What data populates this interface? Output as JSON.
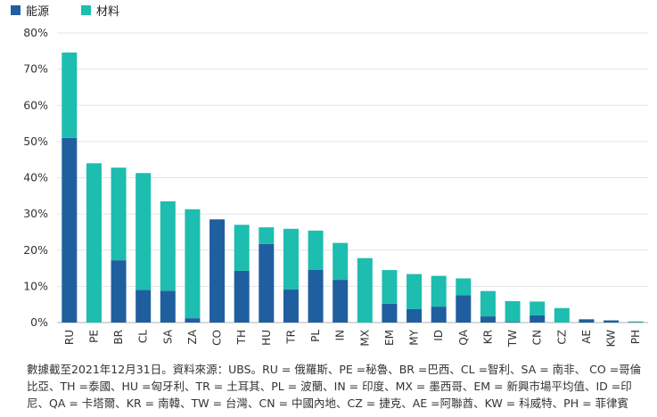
{
  "legend": [
    {
      "name": "能源",
      "color": "#1f5fa0"
    },
    {
      "name": "材料",
      "color": "#1dbdb0"
    }
  ],
  "chart_data": {
    "type": "bar",
    "stacked": true,
    "categories": [
      "RU",
      "PE",
      "BR",
      "CL",
      "SA",
      "ZA",
      "CO",
      "TH",
      "HU",
      "TR",
      "PL",
      "IN",
      "MX",
      "EM",
      "MY",
      "ID",
      "QA",
      "KR",
      "TW",
      "CN",
      "CZ",
      "AE",
      "KW",
      "PH"
    ],
    "series": [
      {
        "name": "能源",
        "color": "#1f5fa0",
        "values": [
          51.0,
          0,
          17.2,
          9.0,
          8.8,
          1.2,
          28.5,
          14.3,
          21.7,
          9.1,
          14.6,
          11.8,
          0,
          5.2,
          3.7,
          4.4,
          7.5,
          1.7,
          0.2,
          2.0,
          0,
          0.9,
          0.6,
          0.1
        ]
      },
      {
        "name": "材料",
        "color": "#1dbdb0",
        "values": [
          23.6,
          44.0,
          25.6,
          32.3,
          24.7,
          30.1,
          0,
          12.7,
          4.6,
          16.8,
          10.8,
          10.2,
          17.8,
          9.3,
          9.7,
          8.5,
          4.7,
          7.0,
          5.7,
          3.8,
          4.0,
          0,
          0,
          0.2
        ]
      }
    ],
    "y_ticks": [
      "0%",
      "10%",
      "20%",
      "30%",
      "40%",
      "50%",
      "60%",
      "70%",
      "80%"
    ],
    "ylim": [
      0,
      80
    ],
    "grid": true,
    "legend_position": "top-left"
  },
  "footnote": {
    "lines": [
      "數據截至2021年12月31日。資料來源：UBS。RU = 俄羅斯、PE =秘魯、BR =巴西、CL =智利、SA = 南非、 CO =哥倫",
      "比亞、TH =泰國、HU =匈牙利、TR = 土耳其、PL = 波蘭、IN = 印度、MX = 墨西哥、EM = 新興市場平均值、ID =印",
      "尼、QA = 卡塔爾、KR = 南韓、TW = 台灣、CN = 中國內地、CZ = 捷克、AE =阿聯酋、KW = 科威特、PH = 菲律賓"
    ]
  }
}
